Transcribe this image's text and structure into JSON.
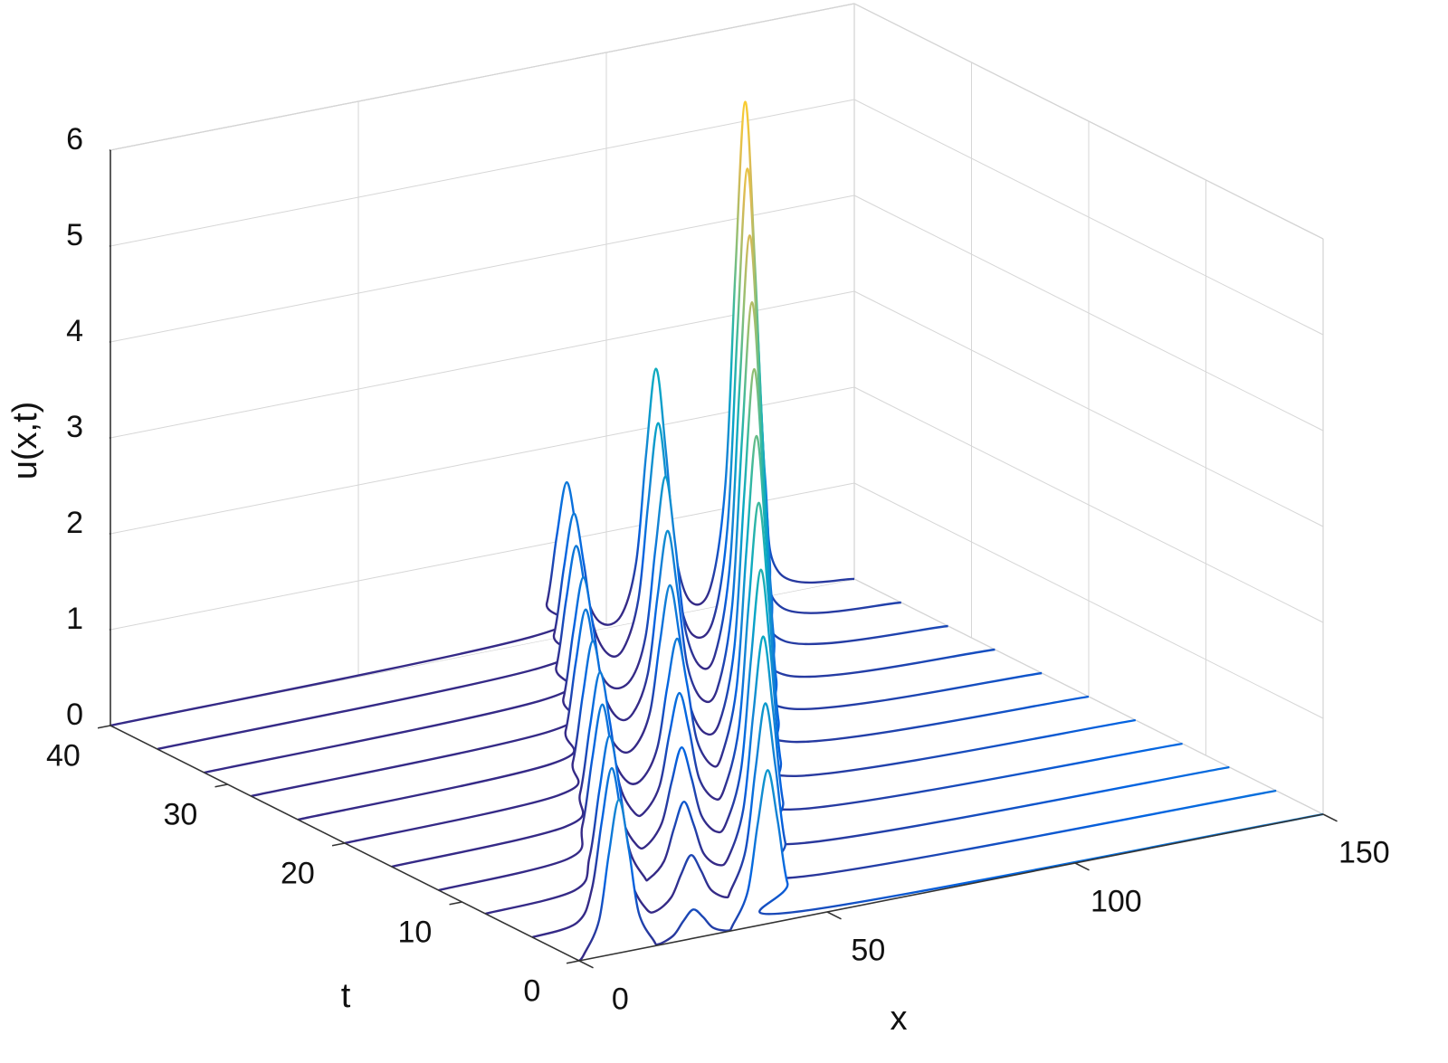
{
  "chart_data": {
    "type": "waterfall3d",
    "xlabel": "x",
    "ylabel": "t",
    "zlabel": "u(x,t)",
    "xlim": [
      0,
      150
    ],
    "ylim": [
      0,
      40
    ],
    "zlim": [
      0,
      6
    ],
    "xticks": [
      0,
      50,
      100,
      150
    ],
    "yticks": [
      0,
      10,
      20,
      30,
      40
    ],
    "zticks": [
      0,
      1,
      2,
      3,
      4,
      5,
      6
    ],
    "grid": true,
    "colormap": [
      "#352a87",
      "#0363e1",
      "#1485d4",
      "#06a7c6",
      "#38b99e",
      "#92bf73",
      "#d9ba56",
      "#fcce2e",
      "#f9fb0e"
    ],
    "series": [
      {
        "t": 0,
        "x": [
          0,
          1,
          4,
          6,
          8,
          10,
          12,
          15,
          16,
          19,
          21,
          23,
          25,
          27,
          30,
          31,
          34,
          36,
          38,
          40,
          42,
          45,
          150
        ],
        "values": [
          0,
          0.06,
          0.38,
          1.06,
          1.6,
          1.06,
          0.38,
          0.06,
          0.01,
          0.07,
          0.2,
          0.3,
          0.2,
          0.07,
          0.01,
          0.06,
          0.38,
          1.06,
          1.6,
          1.06,
          0.38,
          0.06,
          0
        ]
      },
      {
        "t": 4,
        "x": [
          0,
          9,
          12,
          14,
          16,
          18,
          20,
          23,
          25,
          28,
          30,
          32,
          34,
          36,
          39,
          40,
          43,
          45,
          47,
          49,
          51,
          54,
          150
        ],
        "values": [
          0,
          0.06,
          0.38,
          1.06,
          1.6,
          1.06,
          0.38,
          0.06,
          0.02,
          0.13,
          0.35,
          0.53,
          0.35,
          0.13,
          0.02,
          0.08,
          0.47,
          1.29,
          1.96,
          1.29,
          0.47,
          0.08,
          0
        ]
      },
      {
        "t": 8,
        "x": [
          0,
          18,
          21,
          23,
          25,
          27,
          29,
          32,
          33,
          36,
          38,
          40,
          42,
          44,
          47,
          49,
          52,
          54,
          56,
          58,
          60,
          63,
          150
        ],
        "values": [
          0,
          0.06,
          0.38,
          1.06,
          1.6,
          1.06,
          0.38,
          0.06,
          0.03,
          0.18,
          0.5,
          0.76,
          0.5,
          0.18,
          0.03,
          0.09,
          0.56,
          1.53,
          2.32,
          1.53,
          0.56,
          0.09,
          0
        ]
      },
      {
        "t": 12,
        "x": [
          0,
          26,
          29,
          31,
          33,
          35,
          37,
          40,
          42,
          45,
          47,
          49,
          51,
          53,
          56,
          58,
          61,
          63,
          65,
          67,
          69,
          72,
          150
        ],
        "values": [
          0,
          0.06,
          0.38,
          1.06,
          1.6,
          1.06,
          0.38,
          0.06,
          0.04,
          0.24,
          0.65,
          0.99,
          0.65,
          0.24,
          0.04,
          0.11,
          0.64,
          1.77,
          2.68,
          1.77,
          0.64,
          0.11,
          0
        ]
      },
      {
        "t": 16,
        "x": [
          0,
          35,
          38,
          40,
          42,
          44,
          46,
          49,
          51,
          54,
          56,
          58,
          60,
          62,
          65,
          67,
          70,
          72,
          74,
          76,
          78,
          81,
          150
        ],
        "values": [
          0,
          0.06,
          0.38,
          1.06,
          1.6,
          1.06,
          0.38,
          0.06,
          0.05,
          0.29,
          0.81,
          1.22,
          0.81,
          0.29,
          0.05,
          0.12,
          0.73,
          2.01,
          3.04,
          2.01,
          0.73,
          0.12,
          0
        ]
      },
      {
        "t": 20,
        "x": [
          0,
          43,
          46,
          48,
          50,
          52,
          54,
          57,
          60,
          63,
          65,
          67,
          69,
          71,
          74,
          76,
          79,
          81,
          83,
          85,
          87,
          90,
          150
        ],
        "values": [
          0,
          0.06,
          0.38,
          1.06,
          1.6,
          1.06,
          0.38,
          0.06,
          0.06,
          0.35,
          0.96,
          1.45,
          0.96,
          0.35,
          0.06,
          0.14,
          0.82,
          2.24,
          3.4,
          2.24,
          0.82,
          0.14,
          0
        ]
      },
      {
        "t": 24,
        "x": [
          0,
          51,
          54,
          56,
          58,
          60,
          62,
          65,
          68,
          71,
          73,
          75,
          77,
          79,
          82,
          85,
          88,
          90,
          92,
          94,
          96,
          99,
          150
        ],
        "values": [
          0,
          0.06,
          0.38,
          1.06,
          1.6,
          1.06,
          0.38,
          0.06,
          0.07,
          0.4,
          1.11,
          1.68,
          1.11,
          0.4,
          0.07,
          0.15,
          0.9,
          2.48,
          3.76,
          2.48,
          0.9,
          0.15,
          0
        ]
      },
      {
        "t": 28,
        "x": [
          0,
          60,
          63,
          65,
          67,
          69,
          71,
          74,
          77,
          80,
          82,
          84,
          86,
          88,
          91,
          94,
          97,
          99,
          101,
          103,
          105,
          108,
          150
        ],
        "values": [
          0,
          0.06,
          0.38,
          1.06,
          1.6,
          1.06,
          0.38,
          0.06,
          0.08,
          0.46,
          1.26,
          1.91,
          1.26,
          0.46,
          0.08,
          0.16,
          0.99,
          2.72,
          4.12,
          2.72,
          0.99,
          0.16,
          0
        ]
      },
      {
        "t": 32,
        "x": [
          0,
          68,
          71,
          73,
          75,
          77,
          79,
          82,
          86,
          89,
          91,
          93,
          95,
          97,
          100,
          103,
          106,
          108,
          110,
          112,
          114,
          117,
          150
        ],
        "values": [
          0,
          0.06,
          0.38,
          1.06,
          1.6,
          1.06,
          0.38,
          0.06,
          0.09,
          0.51,
          1.41,
          2.14,
          1.41,
          0.51,
          0.09,
          0.18,
          1.08,
          2.96,
          4.48,
          2.96,
          1.08,
          0.18,
          0
        ]
      },
      {
        "t": 36,
        "x": [
          0,
          77,
          80,
          82,
          84,
          86,
          88,
          91,
          94,
          97,
          99,
          101,
          103,
          105,
          108,
          112,
          115,
          117,
          119,
          121,
          123,
          126,
          150
        ],
        "values": [
          0,
          0.06,
          0.38,
          1.06,
          1.6,
          1.06,
          0.38,
          0.06,
          0.09,
          0.57,
          1.56,
          2.37,
          1.56,
          0.57,
          0.09,
          0.19,
          1.16,
          3.19,
          4.84,
          3.19,
          1.16,
          0.19,
          0
        ]
      },
      {
        "t": 40,
        "x": [
          0,
          85,
          88,
          90,
          92,
          94,
          96,
          99,
          103,
          106,
          108,
          110,
          112,
          114,
          117,
          121,
          124,
          126,
          128,
          130,
          132,
          135,
          150
        ],
        "values": [
          0,
          0.06,
          0.38,
          1.06,
          1.6,
          1.06,
          0.38,
          0.06,
          0.1,
          0.62,
          1.72,
          2.6,
          1.72,
          0.62,
          0.1,
          0.21,
          1.25,
          3.43,
          5.2,
          3.43,
          1.25,
          0.21,
          0
        ]
      }
    ]
  }
}
